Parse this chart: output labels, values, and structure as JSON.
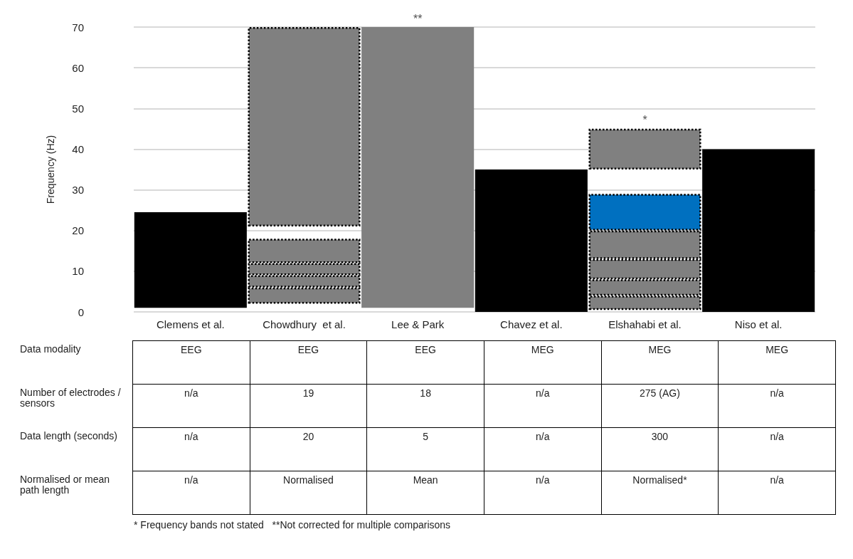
{
  "chart_data": [
    {
      "type": "bar",
      "ylabel": "Frequency (Hz)",
      "categories": [
        "Clemens et al.",
        "Chowdhury  et al.",
        "Lee & Park",
        "Chavez et al.",
        "Elshahabi et al.",
        "Niso et al."
      ],
      "ylim": [
        0,
        70
      ],
      "yticks": [
        0,
        10,
        20,
        30,
        40,
        50,
        60,
        70
      ],
      "grid": "y",
      "annotations": [
        {
          "text": "**",
          "x": "Lee & Park",
          "y": 70
        },
        {
          "text": "*",
          "x": "Elshahabi et al.",
          "y": 45
        }
      ],
      "series": [
        {
          "color": "#000000",
          "base": [
            1,
            null,
            null,
            0,
            null,
            0
          ],
          "values": [
            23.5,
            null,
            null,
            35,
            null,
            40
          ]
        },
        {
          "color": "#808080",
          "base": [
            null,
            null,
            1,
            null,
            null,
            null
          ],
          "values": [
            null,
            null,
            69,
            null,
            null,
            null
          ]
        },
        {
          "color": "#808080",
          "line_style": "dotted",
          "base": [
            null,
            2,
            null,
            null,
            0.5,
            null
          ],
          "values": [
            null,
            4,
            null,
            null,
            3.5,
            null
          ]
        },
        {
          "color": "#808080",
          "line_style": "dotted",
          "base": [
            null,
            6,
            null,
            null,
            4,
            null
          ],
          "values": [
            null,
            3,
            null,
            null,
            4,
            null
          ]
        },
        {
          "color": "#808080",
          "line_style": "dotted",
          "base": [
            null,
            9,
            null,
            null,
            8,
            null
          ],
          "values": [
            null,
            3,
            null,
            null,
            5,
            null
          ]
        },
        {
          "color": "#808080",
          "line_style": "dotted",
          "base": [
            null,
            12,
            null,
            null,
            13,
            null
          ],
          "values": [
            null,
            6,
            null,
            null,
            7,
            null
          ]
        },
        {
          "colors": [
            null,
            "#808080",
            null,
            null,
            "#0070c0",
            null
          ],
          "line_style": "dotted",
          "base": [
            null,
            21,
            null,
            null,
            20,
            null
          ],
          "values": [
            null,
            49,
            null,
            null,
            9,
            null
          ]
        },
        {
          "color": "#808080",
          "line_style": "dotted",
          "base": [
            null,
            null,
            null,
            null,
            35,
            null
          ],
          "values": [
            null,
            null,
            null,
            null,
            10,
            null
          ]
        }
      ]
    },
    {
      "type": "other",
      "y_categories": [
        "Data modality",
        "Number of electrodes / sensors",
        "Data length (seconds)",
        "Normalised or mean path length"
      ],
      "cell_labels": [
        [
          "EEG",
          "EEG",
          "EEG",
          "MEG",
          "MEG",
          "MEG"
        ],
        [
          "n/a",
          "19",
          "18",
          "n/a",
          "275 (AG)",
          "n/a"
        ],
        [
          "n/a",
          "20",
          "5",
          "n/a",
          "300",
          "n/a"
        ],
        [
          "n/a",
          "Normalised",
          "Mean",
          "n/a",
          "Normalised*",
          "n/a"
        ]
      ],
      "annotations": [
        "* Frequency bands not stated   **Not corrected for multiple comparisons"
      ]
    }
  ]
}
